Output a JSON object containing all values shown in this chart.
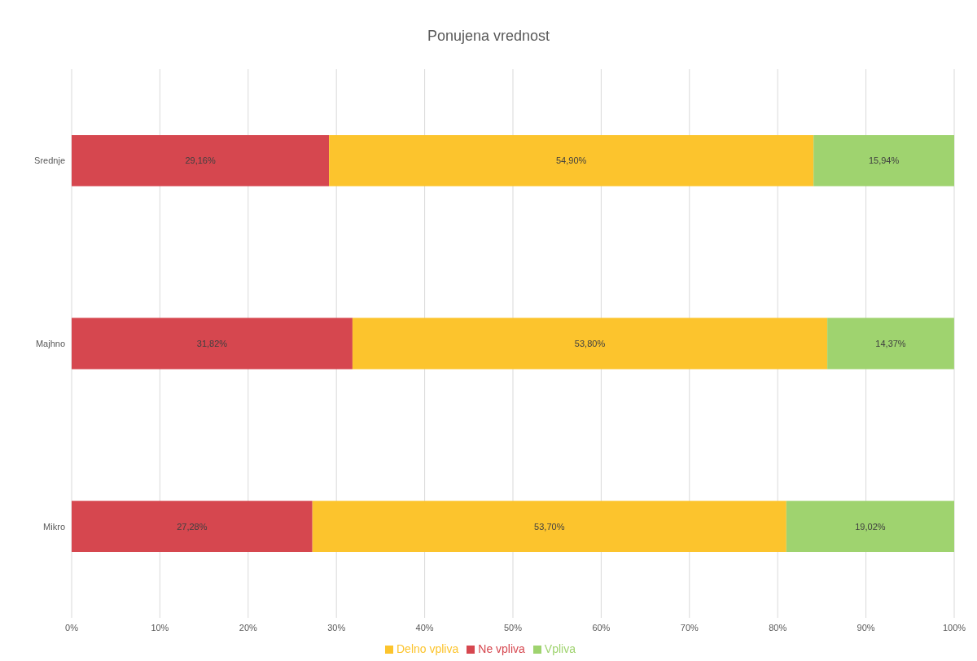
{
  "chart_data": {
    "type": "bar",
    "title": "Ponujena vrednost",
    "orientation": "horizontal",
    "stacked": true,
    "categories": [
      "Srednje",
      "Majhno",
      "Mikro"
    ],
    "series": [
      {
        "name": "Ne vpliva",
        "color": "#d6474f",
        "values": [
          29.16,
          31.82,
          27.28
        ],
        "value_labels": [
          "29,16%",
          "31,82%",
          "27,28%"
        ]
      },
      {
        "name": "Delno vpliva",
        "color": "#fcc42d",
        "values": [
          54.9,
          53.8,
          53.7
        ],
        "value_labels": [
          "54,90%",
          "53,80%",
          "53,70%"
        ]
      },
      {
        "name": "Vpliva",
        "color": "#9fd36f",
        "values": [
          15.94,
          14.37,
          19.02
        ],
        "value_labels": [
          "15,94%",
          "14,37%",
          "19,02%"
        ]
      }
    ],
    "xlim": [
      0,
      100
    ],
    "xticks": [
      {
        "value": 0,
        "label": "0%"
      },
      {
        "value": 10,
        "label": "10%"
      },
      {
        "value": 20,
        "label": "20%"
      },
      {
        "value": 30,
        "label": "30%"
      },
      {
        "value": 40,
        "label": "40%"
      },
      {
        "value": 50,
        "label": "50%"
      },
      {
        "value": 60,
        "label": "60%"
      },
      {
        "value": 70,
        "label": "70%"
      },
      {
        "value": 80,
        "label": "80%"
      },
      {
        "value": 90,
        "label": "90%"
      },
      {
        "value": 100,
        "label": "100%"
      }
    ],
    "grid": "x",
    "legend": "bottom"
  }
}
